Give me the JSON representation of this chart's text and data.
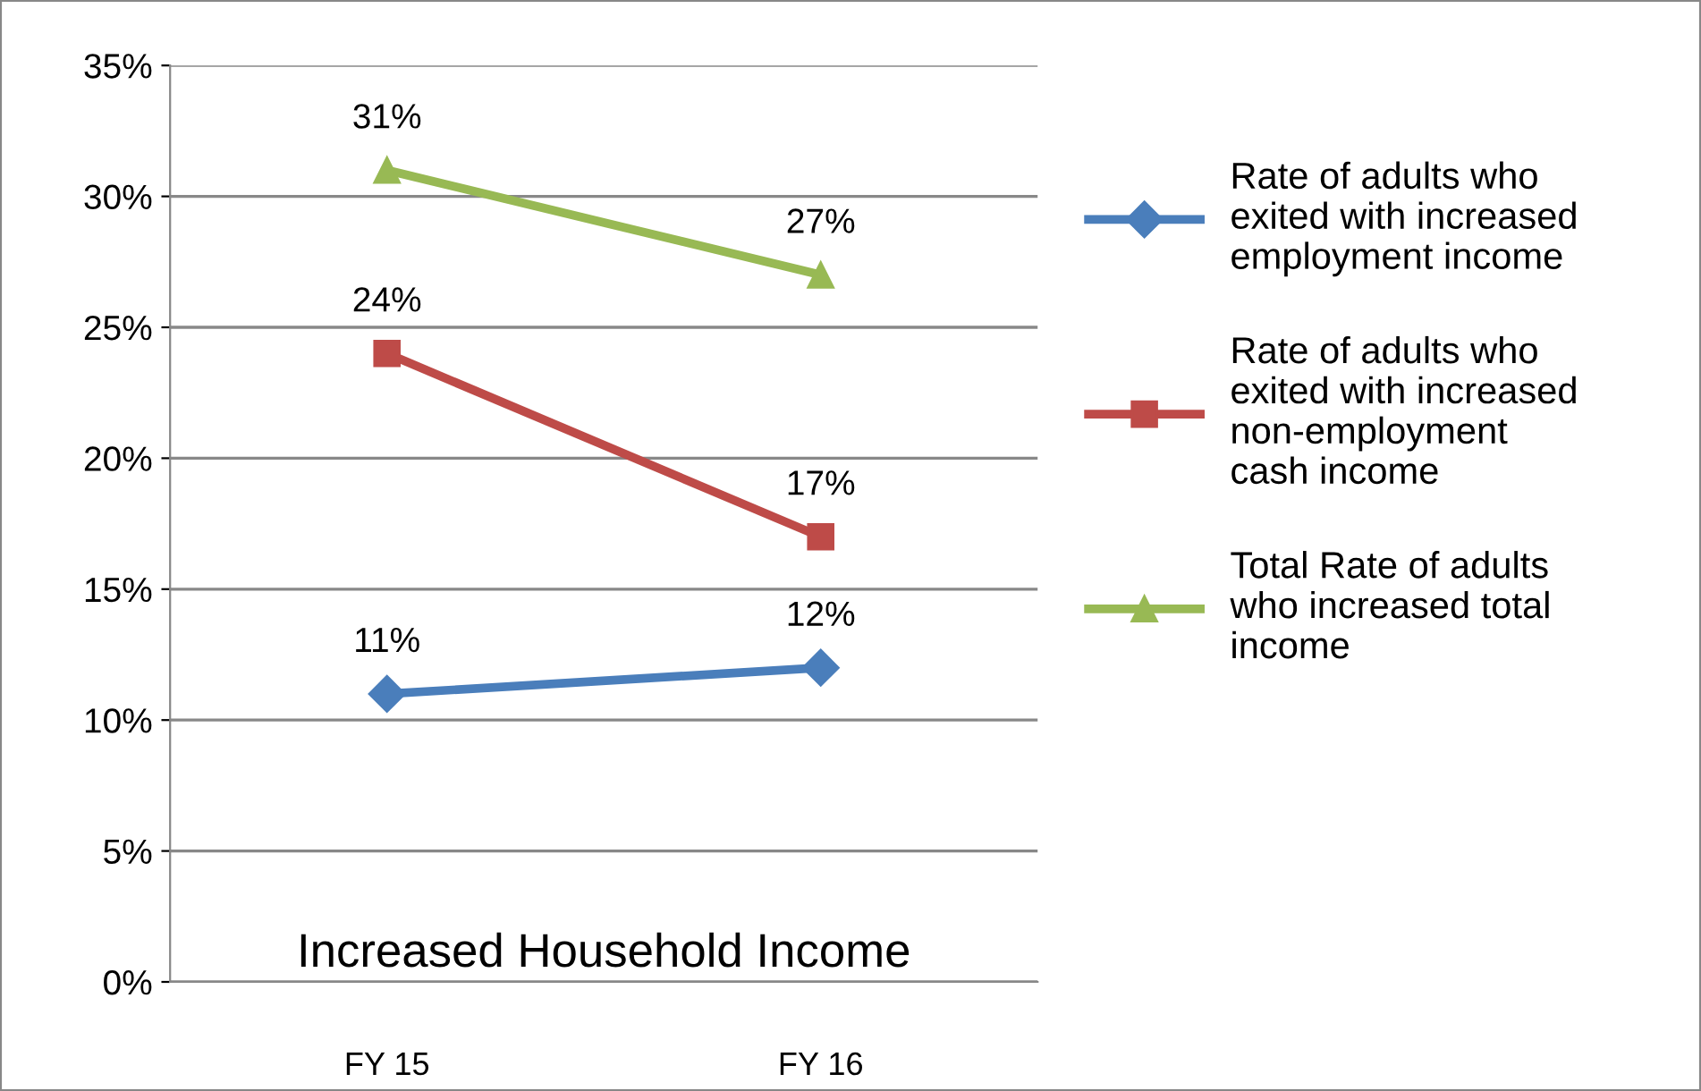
{
  "chart_data": {
    "type": "line",
    "xlabel": "Increased Household Income",
    "categories": [
      "FY 15",
      "FY 16"
    ],
    "series": [
      {
        "name": "Rate of adults who\nexited with increased\nemployment income",
        "color": "#4a7ebb",
        "marker": "diamond",
        "values": [
          11,
          12
        ],
        "value_labels": [
          "11%",
          "12%"
        ]
      },
      {
        "name": "Rate of adults who\nexited with increased\nnon-employment\ncash income",
        "color": "#be4b48",
        "marker": "square",
        "values": [
          24,
          17
        ],
        "value_labels": [
          "24%",
          "17%"
        ]
      },
      {
        "name": "Total Rate of adults\nwho increased total\nincome",
        "color": "#98b954",
        "marker": "triangle",
        "values": [
          31,
          27
        ],
        "value_labels": [
          "31%",
          "27%"
        ]
      }
    ],
    "ylim": [
      0,
      35
    ],
    "yticks": [
      {
        "value": 0,
        "label": "0%"
      },
      {
        "value": 5,
        "label": "5%"
      },
      {
        "value": 10,
        "label": "10%"
      },
      {
        "value": 15,
        "label": "15%"
      },
      {
        "value": 20,
        "label": "20%"
      },
      {
        "value": 25,
        "label": "25%"
      },
      {
        "value": 30,
        "label": "30%"
      },
      {
        "value": 35,
        "label": "35%"
      }
    ],
    "grid": "y",
    "legend": "right",
    "line_style": "solid"
  }
}
